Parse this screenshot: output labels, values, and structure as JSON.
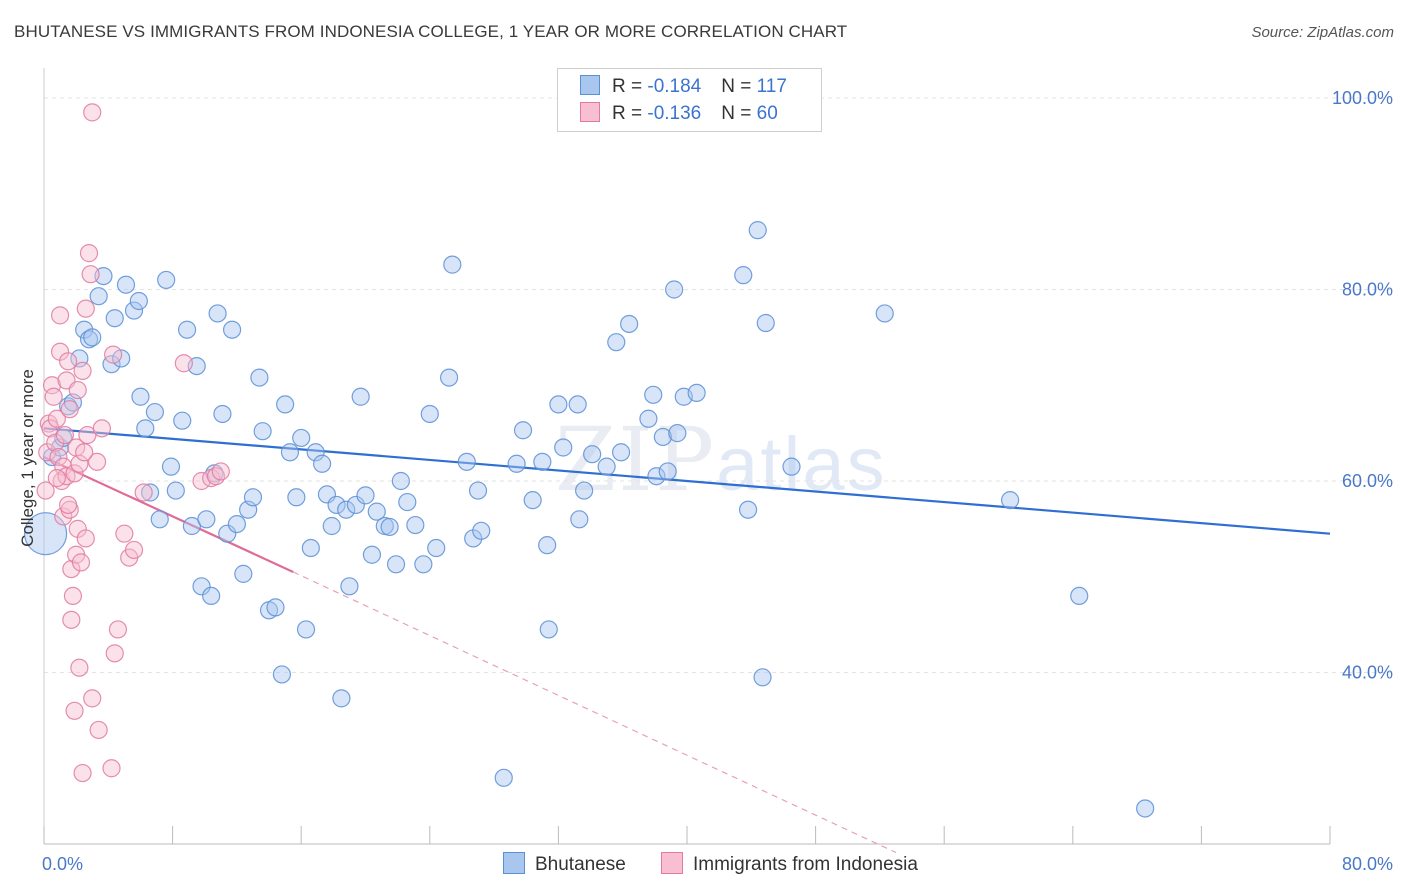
{
  "title": "BHUTANESE VS IMMIGRANTS FROM INDONESIA COLLEGE, 1 YEAR OR MORE CORRELATION CHART",
  "source": "Source: ZipAtlas.com",
  "watermark": {
    "zip": "ZIP",
    "atlas": "atlas"
  },
  "legend": {
    "rows": [
      {
        "r_label": "R = ",
        "r_value": "-0.184",
        "n_label": "N = ",
        "n_value": "117",
        "color": "#a9c6ef",
        "border": "#5b8fd6"
      },
      {
        "r_label": "R = ",
        "r_value": "-0.136",
        "n_label": "N = ",
        "n_value": "60",
        "color": "#f7bfd1",
        "border": "#e07aa0"
      }
    ]
  },
  "bottom_legend": [
    "Bhutanese",
    "Immigrants from Indonesia"
  ],
  "chart_data": {
    "type": "scatter",
    "title": "BHUTANESE VS IMMIGRANTS FROM INDONESIA COLLEGE, 1 YEAR OR MORE CORRELATION CHART",
    "xlabel": "",
    "ylabel": "College, 1 year or more",
    "xlim": [
      0,
      80
    ],
    "ylim": [
      20,
      100
    ],
    "x_tick_labels": [
      "0.0%",
      "80.0%"
    ],
    "y_ticks": [
      40,
      60,
      80,
      100
    ],
    "y_tick_labels": [
      "40.0%",
      "60.0%",
      "80.0%",
      "100.0%"
    ],
    "grid": true,
    "legend_position": "top-center",
    "series": [
      {
        "name": "Bhutanese",
        "color": "#5b8fd6",
        "fill": "#a9c6ef",
        "trend": {
          "x": [
            0,
            80
          ],
          "y": [
            65.5,
            54.5
          ],
          "dashed_extension": false
        },
        "points": [
          [
            0.1,
            54.5
          ],
          [
            0.5,
            62.5
          ],
          [
            1.0,
            63.5
          ],
          [
            1.2,
            64.5
          ],
          [
            1.5,
            67.8
          ],
          [
            1.8,
            68.2
          ],
          [
            2.2,
            72.8
          ],
          [
            2.5,
            75.8
          ],
          [
            2.8,
            74.8
          ],
          [
            3.0,
            75.0
          ],
          [
            3.4,
            79.3
          ],
          [
            3.7,
            81.4
          ],
          [
            4.2,
            72.2
          ],
          [
            4.4,
            77.0
          ],
          [
            4.8,
            72.8
          ],
          [
            5.1,
            80.5
          ],
          [
            5.6,
            77.8
          ],
          [
            5.9,
            78.8
          ],
          [
            6.0,
            68.8
          ],
          [
            6.3,
            65.5
          ],
          [
            6.6,
            58.8
          ],
          [
            6.9,
            67.2
          ],
          [
            7.2,
            56.0
          ],
          [
            7.6,
            81.0
          ],
          [
            7.9,
            61.5
          ],
          [
            8.2,
            59.0
          ],
          [
            8.6,
            66.3
          ],
          [
            8.9,
            75.8
          ],
          [
            9.2,
            55.3
          ],
          [
            9.5,
            72.0
          ],
          [
            9.8,
            49.0
          ],
          [
            10.1,
            56.0
          ],
          [
            10.4,
            48.0
          ],
          [
            10.6,
            60.8
          ],
          [
            10.8,
            77.5
          ],
          [
            11.1,
            67.0
          ],
          [
            11.4,
            54.5
          ],
          [
            11.7,
            75.8
          ],
          [
            12.0,
            55.5
          ],
          [
            12.4,
            50.3
          ],
          [
            12.7,
            57.0
          ],
          [
            13.0,
            58.3
          ],
          [
            13.4,
            70.8
          ],
          [
            13.6,
            65.2
          ],
          [
            14.0,
            46.5
          ],
          [
            14.4,
            46.8
          ],
          [
            14.8,
            39.8
          ],
          [
            15.0,
            68.0
          ],
          [
            15.3,
            63.0
          ],
          [
            15.7,
            58.3
          ],
          [
            16.0,
            64.5
          ],
          [
            16.3,
            44.5
          ],
          [
            16.6,
            53.0
          ],
          [
            16.9,
            63.0
          ],
          [
            17.3,
            61.8
          ],
          [
            17.6,
            58.6
          ],
          [
            17.9,
            55.3
          ],
          [
            18.2,
            57.5
          ],
          [
            18.5,
            37.3
          ],
          [
            18.8,
            57.0
          ],
          [
            19.0,
            49.0
          ],
          [
            19.4,
            57.5
          ],
          [
            19.7,
            68.8
          ],
          [
            20.0,
            58.5
          ],
          [
            20.4,
            52.3
          ],
          [
            20.7,
            56.8
          ],
          [
            21.2,
            55.3
          ],
          [
            21.5,
            55.2
          ],
          [
            21.9,
            51.3
          ],
          [
            22.2,
            60.0
          ],
          [
            22.6,
            57.8
          ],
          [
            23.1,
            55.4
          ],
          [
            23.6,
            51.3
          ],
          [
            24.0,
            67.0
          ],
          [
            24.4,
            53.0
          ],
          [
            25.2,
            70.8
          ],
          [
            25.4,
            82.6
          ],
          [
            26.3,
            62.0
          ],
          [
            26.7,
            54.0
          ],
          [
            27.0,
            59.0
          ],
          [
            27.2,
            54.8
          ],
          [
            28.6,
            29.0
          ],
          [
            29.4,
            61.8
          ],
          [
            29.8,
            65.3
          ],
          [
            30.4,
            58.0
          ],
          [
            31.0,
            62.0
          ],
          [
            31.3,
            53.3
          ],
          [
            31.4,
            44.5
          ],
          [
            32.0,
            68.0
          ],
          [
            32.3,
            63.5
          ],
          [
            33.2,
            68.0
          ],
          [
            33.3,
            56.0
          ],
          [
            33.6,
            59.0
          ],
          [
            34.1,
            62.8
          ],
          [
            35.0,
            61.5
          ],
          [
            35.6,
            74.5
          ],
          [
            35.9,
            63.0
          ],
          [
            36.4,
            76.4
          ],
          [
            37.6,
            66.5
          ],
          [
            37.9,
            69.0
          ],
          [
            38.1,
            60.5
          ],
          [
            38.5,
            64.6
          ],
          [
            38.8,
            61.0
          ],
          [
            39.2,
            80.0
          ],
          [
            39.4,
            65.0
          ],
          [
            39.8,
            68.8
          ],
          [
            40.6,
            69.2
          ],
          [
            43.5,
            81.5
          ],
          [
            43.8,
            57.0
          ],
          [
            44.4,
            86.2
          ],
          [
            44.7,
            39.5
          ],
          [
            44.9,
            76.5
          ],
          [
            46.5,
            61.5
          ],
          [
            52.3,
            77.5
          ],
          [
            60.1,
            58.0
          ],
          [
            64.4,
            48.0
          ],
          [
            68.5,
            25.8
          ]
        ]
      },
      {
        "name": "Immigrants from Indonesia",
        "color": "#e07aa0",
        "fill": "#f7bfd1",
        "trend": {
          "x": [
            0,
            15.5
          ],
          "y": [
            62.5,
            50.5
          ],
          "dashed_to": [
            53.0,
            21.2
          ]
        },
        "points": [
          [
            0.1,
            59.0
          ],
          [
            0.2,
            63.0
          ],
          [
            0.3,
            66.0
          ],
          [
            0.4,
            65.5
          ],
          [
            0.5,
            70.0
          ],
          [
            0.6,
            68.8
          ],
          [
            0.7,
            64.0
          ],
          [
            0.8,
            66.5
          ],
          [
            0.9,
            62.5
          ],
          [
            1.0,
            77.3
          ],
          [
            1.0,
            73.5
          ],
          [
            1.1,
            60.0
          ],
          [
            1.2,
            56.3
          ],
          [
            1.2,
            61.5
          ],
          [
            1.3,
            64.8
          ],
          [
            1.4,
            70.5
          ],
          [
            1.4,
            60.5
          ],
          [
            1.5,
            72.5
          ],
          [
            1.6,
            67.5
          ],
          [
            1.6,
            57.0
          ],
          [
            1.7,
            45.5
          ],
          [
            1.7,
            50.8
          ],
          [
            1.8,
            48.0
          ],
          [
            1.9,
            60.8
          ],
          [
            1.9,
            36.0
          ],
          [
            2.0,
            63.5
          ],
          [
            2.0,
            52.3
          ],
          [
            2.1,
            69.5
          ],
          [
            2.1,
            55.0
          ],
          [
            2.2,
            61.8
          ],
          [
            2.2,
            40.5
          ],
          [
            2.3,
            51.5
          ],
          [
            2.4,
            29.5
          ],
          [
            2.4,
            71.5
          ],
          [
            2.6,
            78.0
          ],
          [
            2.6,
            54.0
          ],
          [
            2.7,
            64.8
          ],
          [
            2.8,
            83.8
          ],
          [
            2.9,
            81.6
          ],
          [
            3.0,
            98.5
          ],
          [
            3.0,
            37.3
          ],
          [
            3.4,
            34.0
          ],
          [
            3.6,
            65.5
          ],
          [
            4.2,
            30.0
          ],
          [
            4.3,
            73.2
          ],
          [
            4.4,
            42.0
          ],
          [
            4.6,
            44.5
          ],
          [
            5.0,
            54.5
          ],
          [
            5.3,
            52.0
          ],
          [
            5.6,
            52.8
          ],
          [
            6.2,
            58.8
          ],
          [
            8.7,
            72.3
          ],
          [
            9.8,
            60.0
          ],
          [
            10.4,
            60.3
          ],
          [
            10.7,
            60.5
          ],
          [
            11.0,
            61.0
          ],
          [
            3.3,
            62.0
          ],
          [
            1.5,
            57.5
          ],
          [
            2.5,
            63.0
          ],
          [
            0.8,
            60.3
          ]
        ]
      }
    ]
  }
}
